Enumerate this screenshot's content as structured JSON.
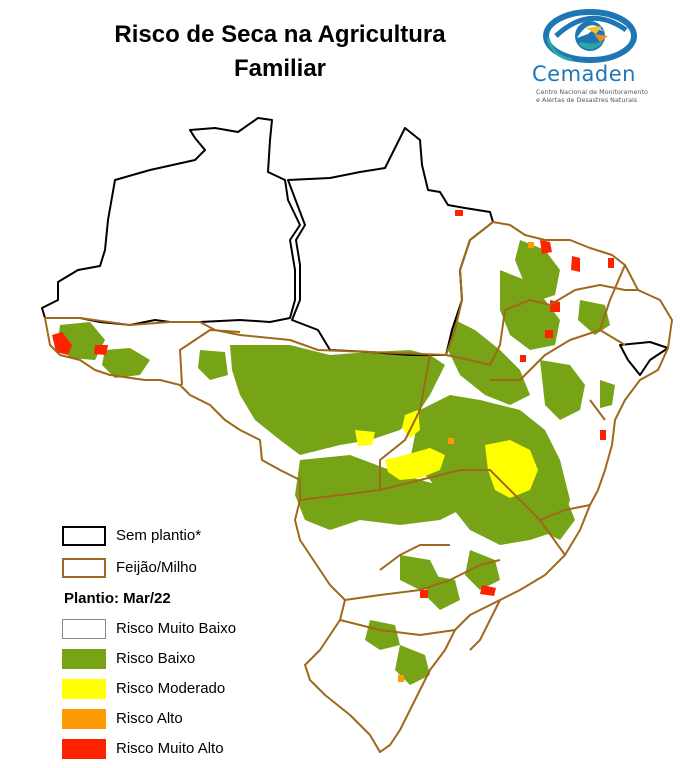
{
  "title": {
    "line1": "Risco de Seca na Agricultura",
    "line2": "Familiar"
  },
  "logo": {
    "name": "Cemaden",
    "subtitle_line1": "Centro Nacional de Monitoramento",
    "subtitle_line2": "e Alertas de Desastres Naturais",
    "colors": {
      "blue": "#1f76b5",
      "teal": "#2aa9a0",
      "yellow": "#f2c230",
      "orange": "#f08a2c"
    }
  },
  "legend": {
    "no_planting": {
      "label": "Sem plantio*",
      "border": "#000000"
    },
    "crop": {
      "label": "Feijão/Milho",
      "border": "#a0681c"
    },
    "planting_heading": "Plantio: Mar/22",
    "classes": [
      {
        "label": "Risco Muito Baixo",
        "color": "#ffffff"
      },
      {
        "label": "Risco Baixo",
        "color": "#77a316"
      },
      {
        "label": "Risco Moderado",
        "color": "#ffff00"
      },
      {
        "label": "Risco Alto",
        "color": "#ff9900"
      },
      {
        "label": "Risco Muito Alto",
        "color": "#ff2200"
      }
    ]
  }
}
